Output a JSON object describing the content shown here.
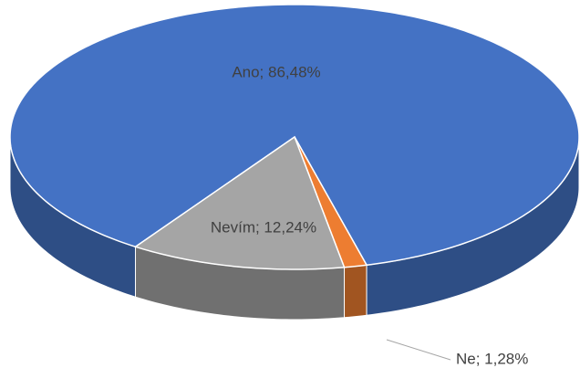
{
  "chart_data": {
    "type": "pie",
    "categories": [
      "Ano",
      "Ne",
      "Nevím"
    ],
    "values": [
      86.48,
      1.28,
      12.24
    ],
    "value_labels": [
      "Ano; 86,48%",
      "Ne; 1,28%",
      "Nevím; 12,24%"
    ],
    "colors": [
      "#4472c4",
      "#ed7d31",
      "#a5a5a5"
    ]
  }
}
